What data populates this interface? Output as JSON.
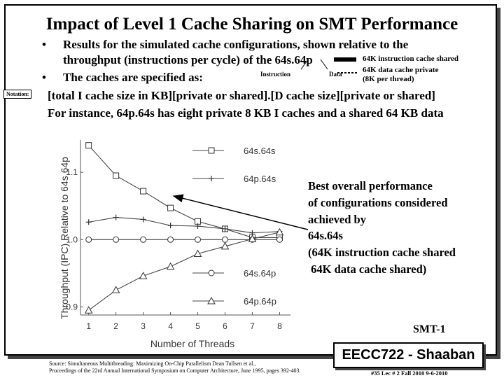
{
  "slide": {
    "title": "Impact of Level 1 Cache Sharing on SMT Performance",
    "bullet1_line1": "Results for the simulated cache configurations, shown relative to the",
    "bullet1_line2": "throughput (instructions per cycle) of the 64s.64p",
    "bullet2": "The caches are specified as:",
    "notation_label": "Notation:",
    "notation_line": "[total I cache size in KB][private or shared].[D cache size][private or shared]",
    "example_line": "For instance, 64p.64s has eight private 8 KB I caches and a shared 64 KB data",
    "callout_instruction": "Instruction",
    "callout_data": "Data",
    "callout_i_shared": "64K instruction cache shared",
    "callout_d_private": "64K data cache private",
    "callout_per_thread": "(8K per thread)",
    "bullet_char": "•",
    "annotation": "Best overall performance\nof configurations considered\nachieved by\n64s.64s\n(64K instruction cache shared\n 64K data cache shared)",
    "smt_label": "SMT-1",
    "course": "EECC722 - Shaaban",
    "source_line1": "Source:  Simultaneous Multithreading: Maximizing On-Chip Parallelism  Dean Tullsen et al.,",
    "source_line2": "Proceedings of the 22rd Annual International Symposium on Computer Architecture, June 1995, pages 392-403.",
    "footer": "#35   Lec # 2   Fall 2010  9-6-2010"
  },
  "chart_data": {
    "type": "line",
    "xlabel": "Number of Threads",
    "ylabel": "Throughput (IPC) Relative to 64s.64p",
    "x": [
      1,
      2,
      3,
      4,
      5,
      6,
      7,
      8
    ],
    "xlim": [
      0.7,
      8.4
    ],
    "ylim": [
      0.888,
      1.148
    ],
    "yticks": [
      0.9,
      1.0,
      1.1
    ],
    "ytick_labels": [
      "0.9",
      "1.0",
      "1.1"
    ],
    "grid": false,
    "legend_position": "right, stacked",
    "series": [
      {
        "name": "64s.64s",
        "marker": "square",
        "values": [
          1.14,
          1.095,
          1.072,
          1.047,
          1.027,
          1.016,
          1.003,
          1.003
        ]
      },
      {
        "name": "64p.64s",
        "marker": "plus",
        "values": [
          1.026,
          1.033,
          1.03,
          1.021,
          1.02,
          1.016,
          1.01,
          1.012
        ]
      },
      {
        "name": "64s.64p",
        "marker": "circle",
        "values": [
          1.0,
          1.0,
          1.0,
          1.0,
          1.0,
          1.0,
          1.0,
          1.0
        ]
      },
      {
        "name": "64p.64p",
        "marker": "triangle",
        "values": [
          0.895,
          0.925,
          0.946,
          0.96,
          0.979,
          0.99,
          1.001,
          1.011
        ]
      }
    ]
  }
}
